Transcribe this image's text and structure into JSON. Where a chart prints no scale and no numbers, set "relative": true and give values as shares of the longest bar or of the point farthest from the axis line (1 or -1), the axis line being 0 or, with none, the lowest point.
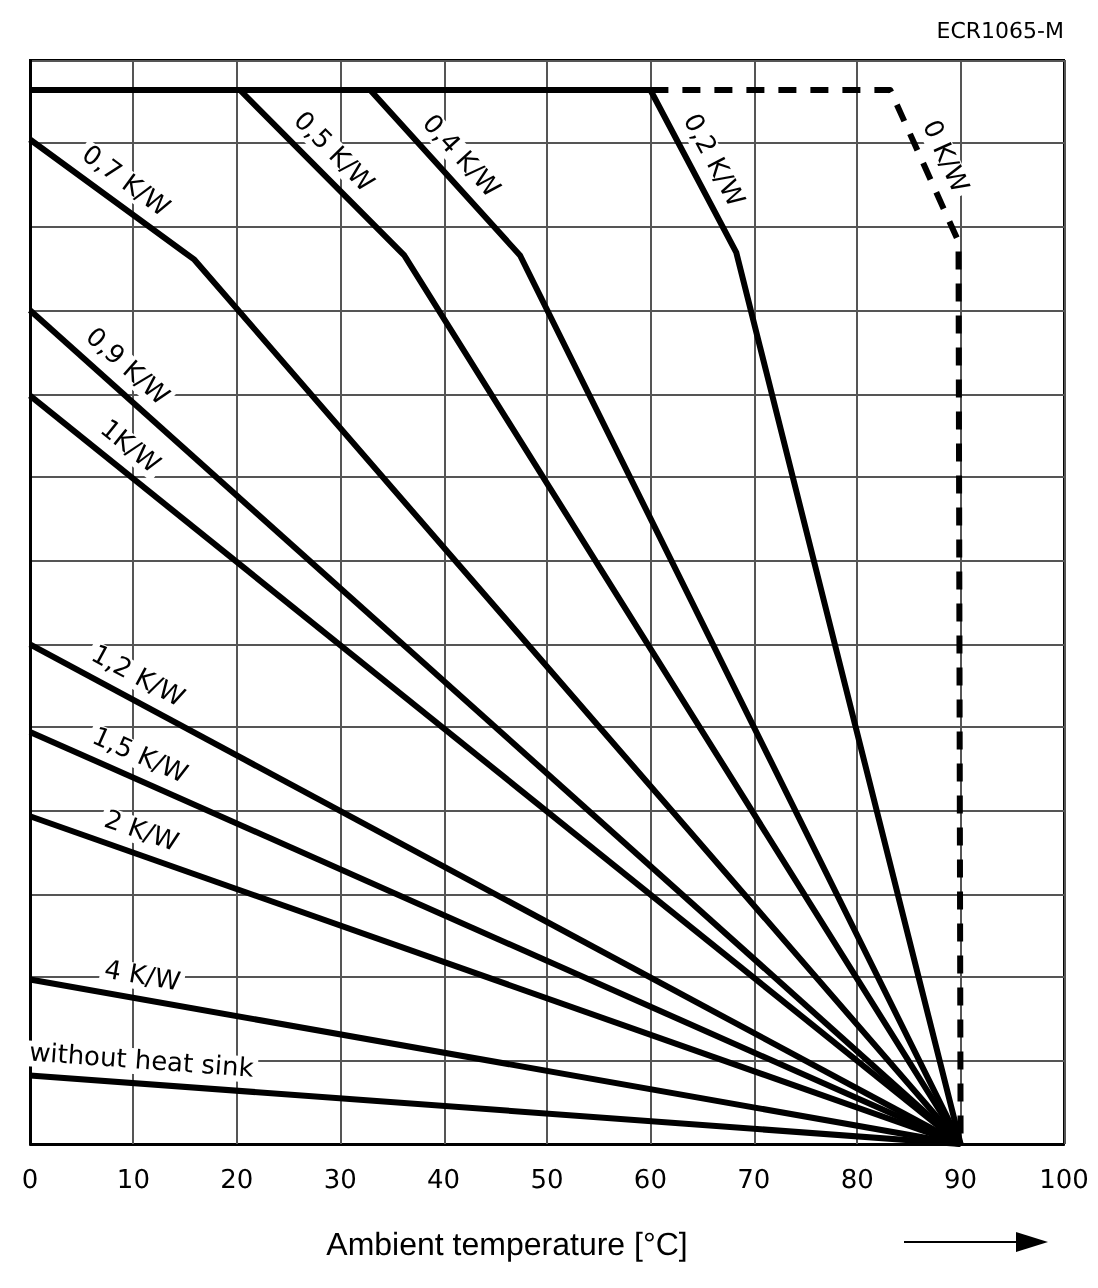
{
  "chart_data": {
    "type": "line",
    "xlabel": "Ambient temperature [°C]",
    "relative": true,
    "xlim": [
      0,
      100
    ],
    "xticks": [
      0,
      10,
      20,
      30,
      40,
      50,
      60,
      70,
      80,
      90,
      100
    ],
    "grid": true,
    "legend": false,
    "marker": "none",
    "tick_labels": "x",
    "annotations": [
      "ECR1065-M"
    ],
    "series": [
      {
        "name": "0 K/W",
        "color": "#000000",
        "line_style": "dashed",
        "x": [
          60,
          83.2,
          89.8,
          90
        ],
        "values": [
          1,
          1,
          0.856,
          0
        ]
      },
      {
        "name": "0,2 K/W",
        "color": "#000000",
        "x": [
          0,
          60,
          68.3,
          90
        ],
        "values": [
          1,
          1,
          0.846,
          0
        ]
      },
      {
        "name": "0,4 K/W",
        "color": "#000000",
        "x": [
          32.9,
          47.4,
          90
        ],
        "values": [
          1,
          0.843,
          0
        ]
      },
      {
        "name": "0,5 K/W",
        "color": "#000000",
        "x": [
          20.3,
          36.2,
          90
        ],
        "values": [
          1,
          0.843,
          0
        ]
      },
      {
        "name": "0,7 K/W",
        "color": "#000000",
        "x": [
          0,
          15.9,
          90
        ],
        "values": [
          0.953,
          0.839,
          0
        ]
      },
      {
        "name": "0,9 K/W",
        "color": "#000000",
        "x": [
          0,
          90
        ],
        "values": [
          0.791,
          0
        ]
      },
      {
        "name": "1K/W",
        "color": "#000000",
        "x": [
          0,
          90
        ],
        "values": [
          0.71,
          0
        ]
      },
      {
        "name": "1,2 K/W",
        "color": "#000000",
        "x": [
          0,
          90
        ],
        "values": [
          0.474,
          0
        ]
      },
      {
        "name": "1,5 K/W",
        "color": "#000000",
        "x": [
          0,
          90
        ],
        "values": [
          0.391,
          0
        ]
      },
      {
        "name": "2 K/W",
        "color": "#000000",
        "x": [
          0,
          90
        ],
        "values": [
          0.311,
          0
        ]
      },
      {
        "name": "4 K/W",
        "color": "#000000",
        "x": [
          0,
          90
        ],
        "values": [
          0.156,
          0
        ]
      },
      {
        "name": "without heat sink",
        "color": "#000000",
        "x": [
          0,
          90
        ],
        "values": [
          0.065,
          0
        ]
      }
    ]
  }
}
